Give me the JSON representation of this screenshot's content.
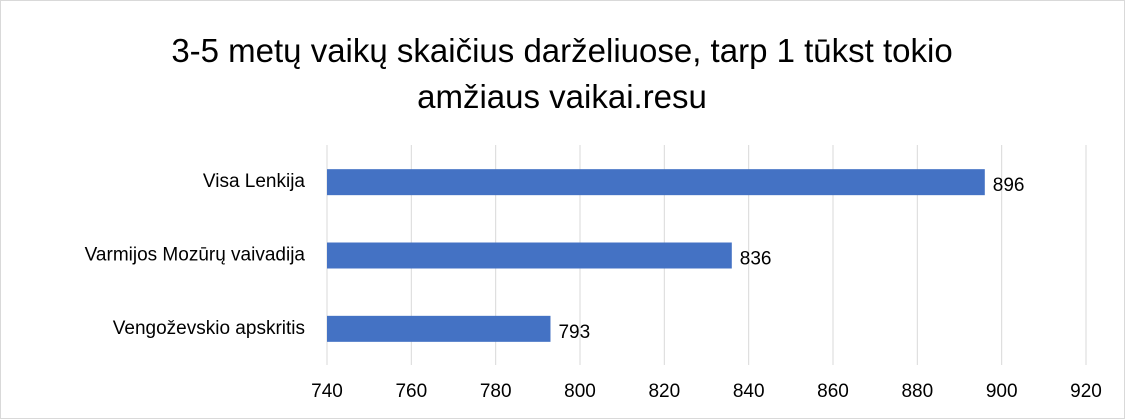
{
  "chart_data": {
    "type": "barh",
    "title": "3-5 metų vaikų skaičius darželiuose, tarp 1 tūkst tokio amžiaus vaikai.resu",
    "categories": [
      "Visa Lenkija",
      "Varmijos Mozūrų vaivadija",
      "Vengoževskio apskritis"
    ],
    "values": [
      896,
      836,
      793
    ],
    "color": "#4472c4",
    "xlim": [
      740,
      920
    ],
    "xticks": [
      740,
      760,
      780,
      800,
      820,
      840,
      860,
      880,
      900,
      920
    ],
    "grid": true
  }
}
